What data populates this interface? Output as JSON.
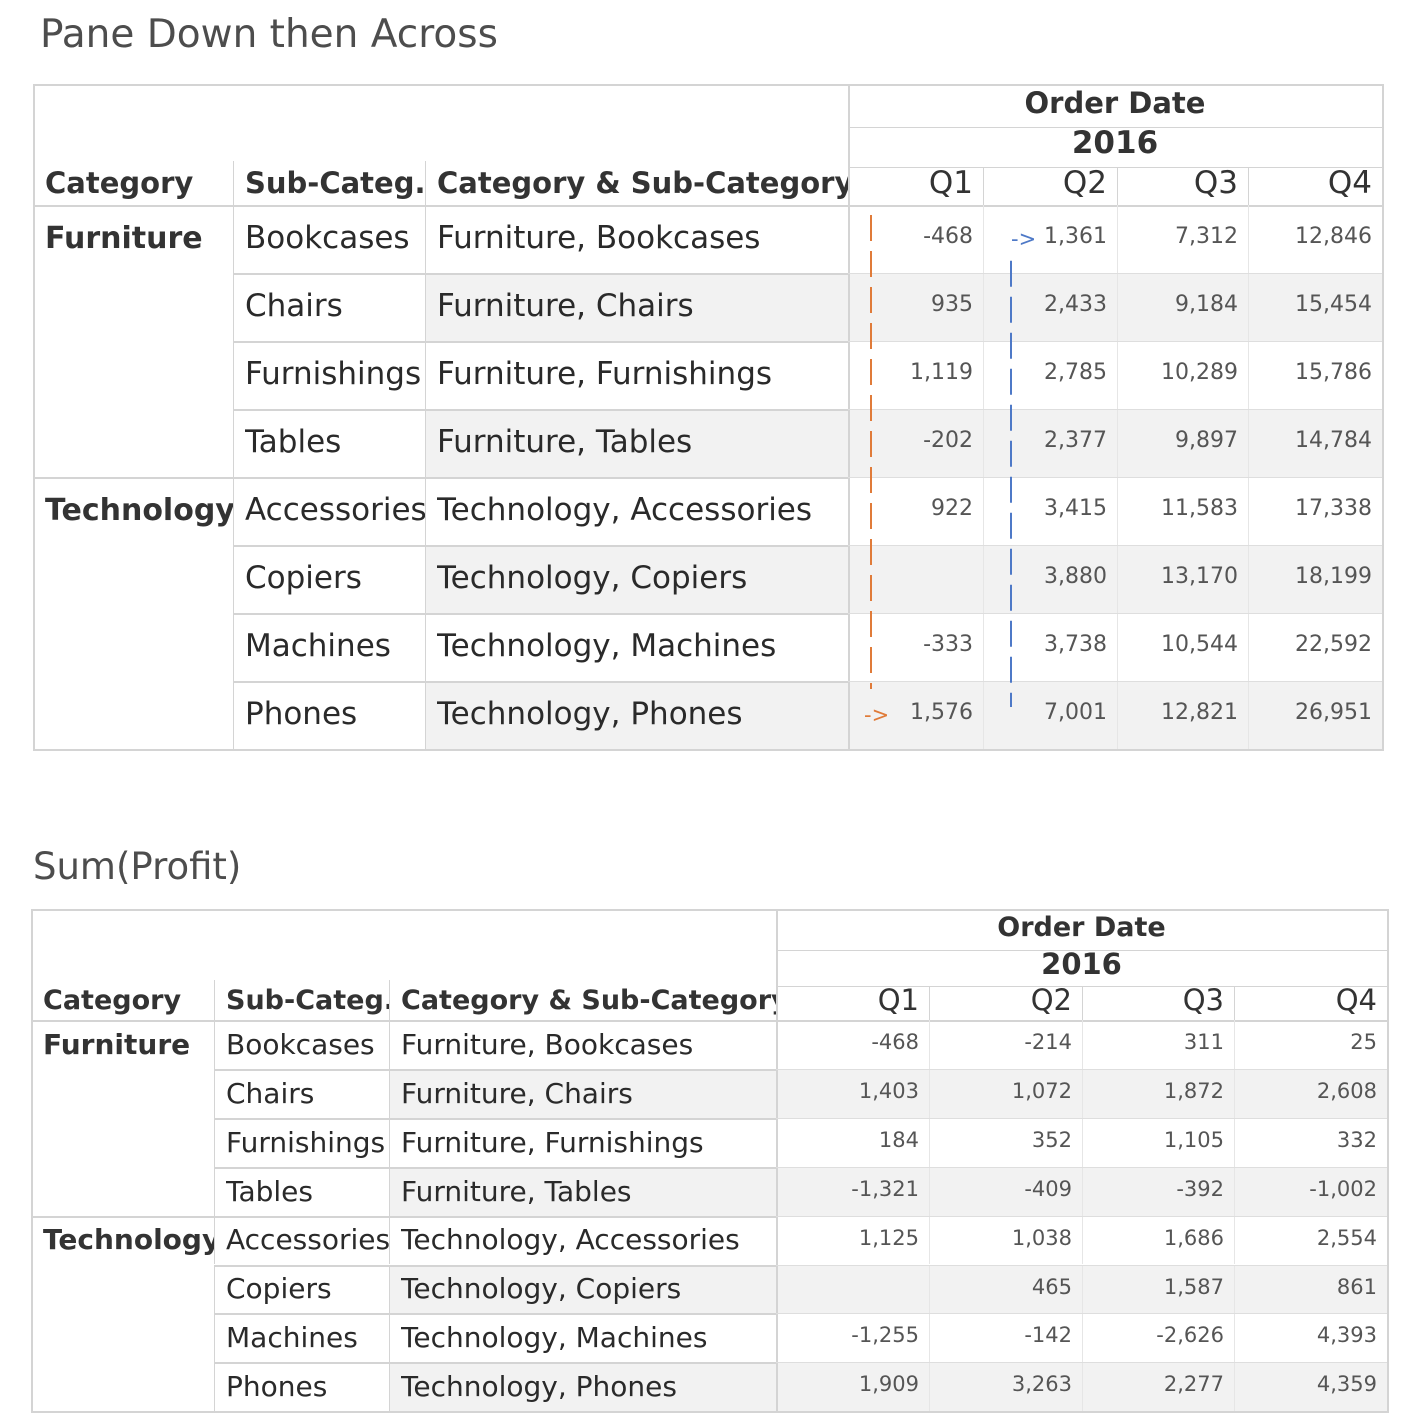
{
  "tables": [
    {
      "title": "Pane Down then Across",
      "header": {
        "row_headers": [
          "Category",
          "Sub-Categ..",
          "Category & Sub-Category"
        ],
        "date_field": "Order Date",
        "year": "2016",
        "quarters": [
          "Q1",
          "Q2",
          "Q3",
          "Q4"
        ]
      },
      "groups": [
        {
          "category": "Furniture",
          "rows": [
            {
              "sub": "Bookcases",
              "combo": "Furniture, Bookcases",
              "values": [
                "-468",
                "1,361",
                "7,312",
                "12,846"
              ]
            },
            {
              "sub": "Chairs",
              "combo": "Furniture, Chairs",
              "values": [
                "935",
                "2,433",
                "9,184",
                "15,454"
              ]
            },
            {
              "sub": "Furnishings",
              "combo": "Furniture, Furnishings",
              "values": [
                "1,119",
                "2,785",
                "10,289",
                "15,786"
              ]
            },
            {
              "sub": "Tables",
              "combo": "Furniture, Tables",
              "values": [
                "-202",
                "2,377",
                "9,897",
                "14,784"
              ]
            }
          ]
        },
        {
          "category": "Technology",
          "rows": [
            {
              "sub": "Accessories",
              "combo": "Technology, Accessories",
              "values": [
                "922",
                "3,415",
                "11,583",
                "17,338"
              ]
            },
            {
              "sub": "Copiers",
              "combo": "Technology, Copiers",
              "values": [
                "",
                "3,880",
                "13,170",
                "18,199"
              ]
            },
            {
              "sub": "Machines",
              "combo": "Technology, Machines",
              "values": [
                "-333",
                "3,738",
                "10,544",
                "22,592"
              ]
            },
            {
              "sub": "Phones",
              "combo": "Technology, Phones",
              "values": [
                "1,576",
                "7,001",
                "12,821",
                "26,951"
              ]
            }
          ]
        }
      ],
      "annotations": {
        "q1_arrow": "->",
        "q2_arrow": "->",
        "q1_color": "#e07b39",
        "q2_color": "#4e79c7"
      }
    },
    {
      "title": "Sum(Profit)",
      "header": {
        "row_headers": [
          "Category",
          "Sub-Categ..",
          "Category & Sub-Category"
        ],
        "date_field": "Order Date",
        "year": "2016",
        "quarters": [
          "Q1",
          "Q2",
          "Q3",
          "Q4"
        ]
      },
      "groups": [
        {
          "category": "Furniture",
          "rows": [
            {
              "sub": "Bookcases",
              "combo": "Furniture, Bookcases",
              "values": [
                "-468",
                "-214",
                "311",
                "25"
              ]
            },
            {
              "sub": "Chairs",
              "combo": "Furniture, Chairs",
              "values": [
                "1,403",
                "1,072",
                "1,872",
                "2,608"
              ]
            },
            {
              "sub": "Furnishings",
              "combo": "Furniture, Furnishings",
              "values": [
                "184",
                "352",
                "1,105",
                "332"
              ]
            },
            {
              "sub": "Tables",
              "combo": "Furniture, Tables",
              "values": [
                "-1,321",
                "-409",
                "-392",
                "-1,002"
              ]
            }
          ]
        },
        {
          "category": "Technology",
          "rows": [
            {
              "sub": "Accessories",
              "combo": "Technology, Accessories",
              "values": [
                "1,125",
                "1,038",
                "1,686",
                "2,554"
              ]
            },
            {
              "sub": "Copiers",
              "combo": "Technology, Copiers",
              "values": [
                "",
                "465",
                "1,587",
                "861"
              ]
            },
            {
              "sub": "Machines",
              "combo": "Technology, Machines",
              "values": [
                "-1,255",
                "-142",
                "-2,626",
                "4,393"
              ]
            },
            {
              "sub": "Phones",
              "combo": "Technology, Phones",
              "values": [
                "1,909",
                "3,263",
                "2,277",
                "4,359"
              ]
            }
          ]
        }
      ]
    }
  ],
  "chart_data": [
    {
      "type": "table",
      "title": "Pane Down then Across",
      "columns": [
        "Q1",
        "Q2",
        "Q3",
        "Q4"
      ],
      "column_group": "Order Date 2016",
      "rows": [
        {
          "category": "Furniture",
          "sub_category": "Bookcases",
          "values": [
            -468,
            1361,
            7312,
            12846
          ]
        },
        {
          "category": "Furniture",
          "sub_category": "Chairs",
          "values": [
            935,
            2433,
            9184,
            15454
          ]
        },
        {
          "category": "Furniture",
          "sub_category": "Furnishings",
          "values": [
            1119,
            2785,
            10289,
            15786
          ]
        },
        {
          "category": "Furniture",
          "sub_category": "Tables",
          "values": [
            -202,
            2377,
            9897,
            14784
          ]
        },
        {
          "category": "Technology",
          "sub_category": "Accessories",
          "values": [
            922,
            3415,
            11583,
            17338
          ]
        },
        {
          "category": "Technology",
          "sub_category": "Copiers",
          "values": [
            null,
            3880,
            13170,
            18199
          ]
        },
        {
          "category": "Technology",
          "sub_category": "Machines",
          "values": [
            -333,
            3738,
            10544,
            22592
          ]
        },
        {
          "category": "Technology",
          "sub_category": "Phones",
          "values": [
            1576,
            7001,
            12821,
            26951
          ]
        }
      ]
    },
    {
      "type": "table",
      "title": "Sum(Profit)",
      "columns": [
        "Q1",
        "Q2",
        "Q3",
        "Q4"
      ],
      "column_group": "Order Date 2016",
      "rows": [
        {
          "category": "Furniture",
          "sub_category": "Bookcases",
          "values": [
            -468,
            -214,
            311,
            25
          ]
        },
        {
          "category": "Furniture",
          "sub_category": "Chairs",
          "values": [
            1403,
            1072,
            1872,
            2608
          ]
        },
        {
          "category": "Furniture",
          "sub_category": "Furnishings",
          "values": [
            184,
            352,
            1105,
            332
          ]
        },
        {
          "category": "Furniture",
          "sub_category": "Tables",
          "values": [
            -1321,
            -409,
            -392,
            -1002
          ]
        },
        {
          "category": "Technology",
          "sub_category": "Accessories",
          "values": [
            1125,
            1038,
            1686,
            2554
          ]
        },
        {
          "category": "Technology",
          "sub_category": "Copiers",
          "values": [
            null,
            465,
            1587,
            861
          ]
        },
        {
          "category": "Technology",
          "sub_category": "Machines",
          "values": [
            -1255,
            -142,
            -2626,
            4393
          ]
        },
        {
          "category": "Technology",
          "sub_category": "Phones",
          "values": [
            1909,
            3263,
            2277,
            4359
          ]
        }
      ]
    }
  ]
}
